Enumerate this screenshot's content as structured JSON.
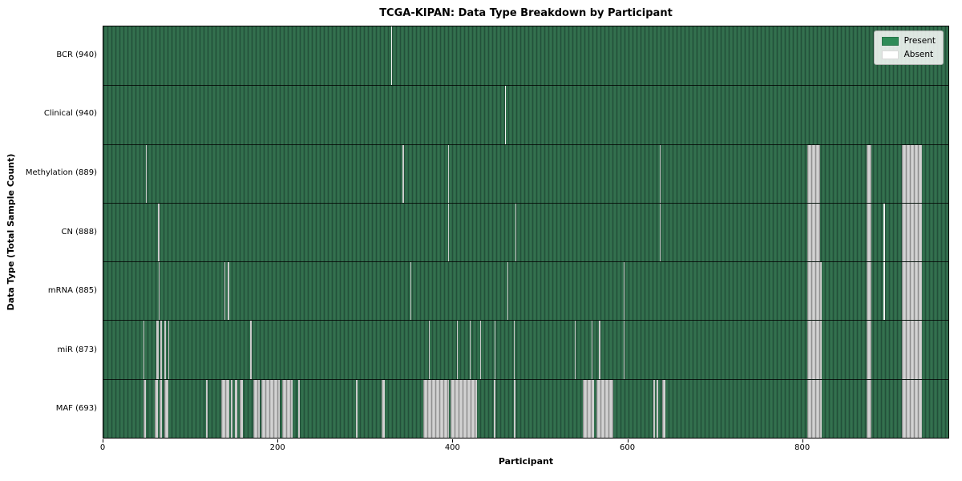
{
  "chart_data": {
    "type": "heatmap",
    "title": "TCGA-KIPAN: Data Type Breakdown by Participant",
    "xlabel": "Participant",
    "ylabel": "Data Type (Total Sample Count)",
    "x_ticks": [
      0,
      200,
      400,
      600,
      800
    ],
    "x_max": 968,
    "grid": false,
    "legend_position": "upper right",
    "legend": [
      {
        "label": "Present",
        "color": "#2e8b57"
      },
      {
        "label": "Absent",
        "color": "#ffffff"
      }
    ],
    "value_encoding": {
      "present": "green cell",
      "absent": "white/gray cell"
    },
    "rows": [
      {
        "label": "BCR (940)",
        "name": "BCR",
        "present_count": 940,
        "absent_ranges": [
          [
            330,
            331,
            "w"
          ]
        ]
      },
      {
        "label": "Clinical (940)",
        "name": "Clinical",
        "present_count": 940,
        "absent_ranges": [
          [
            460,
            461,
            "w"
          ]
        ]
      },
      {
        "label": "Methylation (889)",
        "name": "Methylation",
        "present_count": 889,
        "absent_ranges": [
          [
            49,
            50
          ],
          [
            343,
            344
          ],
          [
            395,
            396
          ],
          [
            637,
            638
          ],
          [
            806,
            821
          ],
          [
            874,
            880
          ],
          [
            915,
            938
          ]
        ]
      },
      {
        "label": "CN (888)",
        "name": "CN",
        "present_count": 888,
        "absent_ranges": [
          [
            62,
            64
          ],
          [
            395,
            396
          ],
          [
            472,
            473
          ],
          [
            637,
            638
          ],
          [
            806,
            821
          ],
          [
            874,
            880
          ],
          [
            894,
            895,
            "w"
          ],
          [
            915,
            938
          ]
        ]
      },
      {
        "label": "mRNA (885)",
        "name": "mRNA",
        "present_count": 885,
        "absent_ranges": [
          [
            63,
            64
          ],
          [
            139,
            140
          ],
          [
            142,
            144
          ],
          [
            352,
            353
          ],
          [
            463,
            464
          ],
          [
            596,
            597
          ],
          [
            806,
            823
          ],
          [
            874,
            880
          ],
          [
            894,
            895,
            "w"
          ],
          [
            915,
            938
          ]
        ]
      },
      {
        "label": "miR (873)",
        "name": "miR",
        "present_count": 873,
        "absent_ranges": [
          [
            46,
            47
          ],
          [
            61,
            63
          ],
          [
            65,
            67
          ],
          [
            70,
            72
          ],
          [
            74,
            75
          ],
          [
            168,
            170
          ],
          [
            373,
            374
          ],
          [
            405,
            406
          ],
          [
            420,
            421
          ],
          [
            432,
            433
          ],
          [
            448,
            449
          ],
          [
            470,
            471
          ],
          [
            540,
            541
          ],
          [
            559,
            560
          ],
          [
            568,
            569
          ],
          [
            596,
            597
          ],
          [
            806,
            823
          ],
          [
            874,
            880
          ],
          [
            915,
            938
          ]
        ]
      },
      {
        "label": "MAF (693)",
        "name": "MAF",
        "present_count": 693,
        "absent_ranges": [
          [
            46,
            49
          ],
          [
            59,
            62
          ],
          [
            64,
            67
          ],
          [
            70,
            74
          ],
          [
            118,
            119
          ],
          [
            135,
            144
          ],
          [
            146,
            148
          ],
          [
            151,
            153
          ],
          [
            156,
            160
          ],
          [
            172,
            179
          ],
          [
            181,
            202
          ],
          [
            205,
            217
          ],
          [
            223,
            225
          ],
          [
            289,
            291
          ],
          [
            319,
            322
          ],
          [
            366,
            396
          ],
          [
            398,
            428
          ],
          [
            447,
            449
          ],
          [
            470,
            472
          ],
          [
            549,
            562
          ],
          [
            565,
            584
          ],
          [
            630,
            632
          ],
          [
            634,
            636
          ],
          [
            640,
            644
          ],
          [
            806,
            823
          ],
          [
            874,
            880
          ],
          [
            915,
            938
          ]
        ]
      }
    ]
  }
}
